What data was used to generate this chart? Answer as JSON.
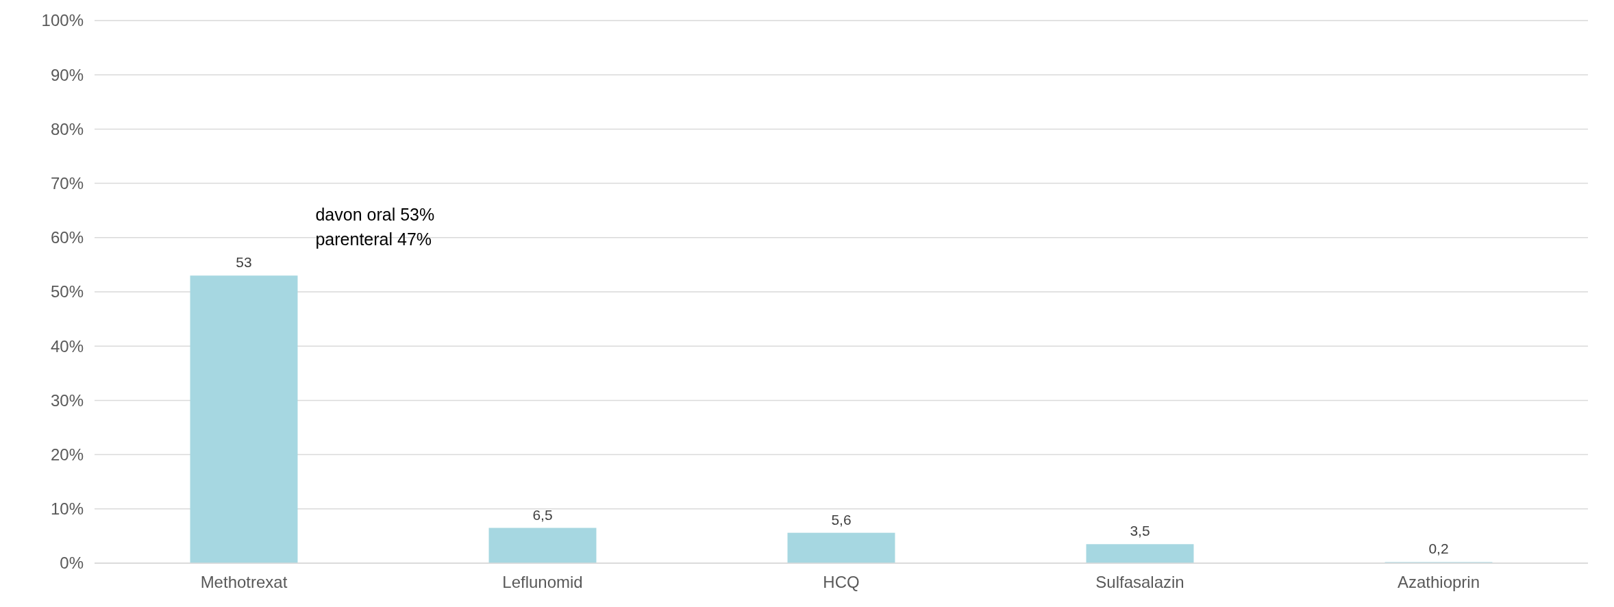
{
  "chart_data": {
    "type": "bar",
    "categories": [
      "Methotrexat",
      "Leflunomid",
      "HCQ",
      "Sulfasalazin",
      "Azathioprin"
    ],
    "values": [
      53,
      6.5,
      5.6,
      3.5,
      0.2
    ],
    "value_labels": [
      "53",
      "6,5",
      "5,6",
      "3,5",
      "0,2"
    ],
    "color": "#a6d7e1",
    "ylim": [
      0,
      100
    ],
    "yticks": [
      {
        "value": 0,
        "label": "0%"
      },
      {
        "value": 10,
        "label": "10%"
      },
      {
        "value": 20,
        "label": "20%"
      },
      {
        "value": 30,
        "label": "30%"
      },
      {
        "value": 40,
        "label": "40%"
      },
      {
        "value": 50,
        "label": "50%"
      },
      {
        "value": 60,
        "label": "60%"
      },
      {
        "value": 70,
        "label": "70%"
      },
      {
        "value": 80,
        "label": "80%"
      },
      {
        "value": 90,
        "label": "90%"
      },
      {
        "value": 100,
        "label": "100%"
      }
    ],
    "grid": "y",
    "annotations": [
      "davon oral 53%",
      "parenteral 47%"
    ]
  }
}
